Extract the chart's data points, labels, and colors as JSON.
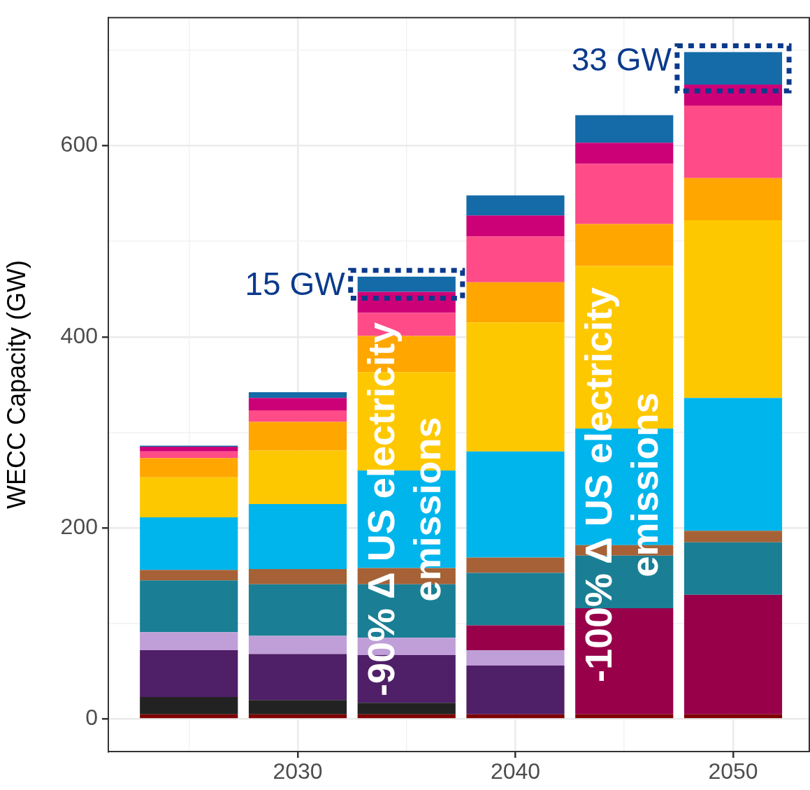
{
  "chart_data": {
    "type": "bar",
    "stacked": true,
    "ylabel": "WECC Capacity (GW)",
    "x": [
      2025,
      2030,
      2035,
      2040,
      2045,
      2050
    ],
    "xlim": [
      2021.3,
      2053.5
    ],
    "xticks": [
      {
        "value": 2025,
        "label": null
      },
      2030,
      {
        "value": 2035,
        "label": null
      },
      2040,
      {
        "value": 2045,
        "label": null
      },
      2050
    ],
    "ylim": [
      -34,
      734
    ],
    "yticks": [
      0,
      {
        "value": 100,
        "label": null
      },
      200,
      {
        "value": 300,
        "label": null
      },
      400,
      {
        "value": 500,
        "label": null
      },
      600,
      {
        "value": 700,
        "label": null
      }
    ],
    "grid": true,
    "legend": false,
    "series": [
      {
        "color": "#7f0000",
        "values": [
          5,
          5,
          5,
          5,
          5,
          5
        ]
      },
      {
        "color": "#222222",
        "values": [
          18,
          15,
          12,
          0,
          0,
          0
        ]
      },
      {
        "color": "#4f1f68",
        "values": [
          49,
          48,
          50,
          51,
          0,
          0
        ]
      },
      {
        "color": "#c09fd8",
        "values": [
          19,
          19,
          18,
          16,
          0,
          0
        ]
      },
      {
        "color": "#98004a",
        "values": [
          0,
          0,
          0,
          26,
          111,
          125
        ]
      },
      {
        "color": "#1a7f94",
        "values": [
          54,
          54,
          56,
          55,
          55,
          55
        ]
      },
      {
        "color": "#a66236",
        "values": [
          11,
          16,
          17,
          16,
          11,
          12
        ]
      },
      {
        "color": "#00b5ec",
        "values": [
          55,
          68,
          102,
          111,
          122,
          139
        ]
      },
      {
        "color": "#fec800",
        "values": [
          42,
          56,
          103,
          135,
          170,
          186
        ]
      },
      {
        "color": "#ffa600",
        "values": [
          20,
          30,
          38,
          42,
          44,
          44
        ]
      },
      {
        "color": "#ff4b87",
        "values": [
          7,
          12,
          24,
          48,
          63,
          76
        ]
      },
      {
        "color": "#cc0077",
        "values": [
          5,
          13,
          22,
          22,
          22,
          22
        ]
      },
      {
        "color": "#146ba8",
        "values": [
          1,
          6,
          16,
          21,
          29,
          34
        ]
      }
    ],
    "annotations": [
      {
        "text": "15 GW",
        "x": 2035,
        "y": 463
      },
      {
        "text": "33 GW",
        "x": 2050,
        "y": 698
      },
      "-90% Δ US electricity emissions",
      "-100% Δ US electricity emissions"
    ]
  }
}
